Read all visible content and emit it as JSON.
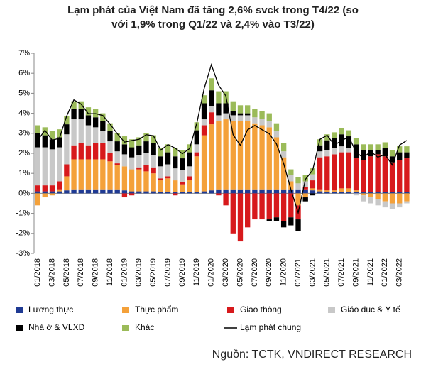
{
  "chart_data": {
    "type": "bar",
    "stacked": true,
    "title": [
      "Lạm phát của Việt Nam đã tăng 2,6% svck trong T4/22 (so",
      "với 1,9% trong Q1/22 và 2,4% vào T3/22)"
    ],
    "source": "Nguồn: TCTK, VNDIRECT RESEARCH",
    "categories": [
      "01/2018",
      null,
      "03/2018",
      null,
      "05/2018",
      null,
      "07/2018",
      null,
      "09/2018",
      null,
      "11/2018",
      null,
      "01/2019",
      null,
      "03/2019",
      null,
      "05/2019",
      null,
      "07/2019",
      null,
      "09/2019",
      null,
      "11/2019",
      null,
      "01/2020",
      null,
      "03/2020",
      null,
      "05/2020",
      null,
      "07/2020",
      null,
      "09/2020",
      null,
      "11/2020",
      null,
      "01/2021",
      null,
      "03/2021",
      null,
      "05/2021",
      null,
      "07/2021",
      null,
      "09/2021",
      null,
      "11/2021",
      null,
      "01/2022",
      null,
      "03/2022",
      null
    ],
    "ylim": [
      -3,
      7
    ],
    "yticks": [
      {
        "value": -3,
        "label": "-3%"
      },
      {
        "value": -2,
        "label": "-2%"
      },
      {
        "value": -1,
        "label": "-1%"
      },
      {
        "value": 0,
        "label": "0%"
      },
      {
        "value": 1,
        "label": "1%"
      },
      {
        "value": 2,
        "label": "2%"
      },
      {
        "value": 3,
        "label": "3%"
      },
      {
        "value": 4,
        "label": "4%"
      },
      {
        "value": 5,
        "label": "5%"
      },
      {
        "value": 6,
        "label": "6%"
      },
      {
        "value": 7,
        "label": "7%"
      }
    ],
    "grid": false,
    "series": [
      {
        "name": "Lương thực",
        "color": "#1f3a93",
        "values": [
          0.1,
          0.1,
          0.1,
          0.1,
          0.15,
          0.2,
          0.2,
          0.2,
          0.2,
          0.2,
          0.2,
          0.2,
          0.15,
          0.1,
          0.1,
          0.1,
          0.1,
          0.05,
          0.05,
          0.05,
          0.05,
          0.05,
          0.05,
          0.1,
          0.15,
          0.2,
          0.2,
          0.2,
          0.2,
          0.2,
          0.2,
          0.2,
          0.2,
          0.2,
          0.2,
          0.2,
          0.2,
          0.2,
          0.15,
          0.1,
          0.05,
          0.05,
          0.05,
          0.05,
          0.05,
          0.05,
          0.05,
          0.05,
          0.05,
          0.05,
          0.05,
          0.05
        ]
      },
      {
        "name": "Thực phẩm",
        "color": "#f4a13a",
        "values": [
          -0.6,
          -0.2,
          -0.1,
          0.1,
          0.7,
          1.5,
          1.5,
          1.5,
          1.5,
          1.5,
          1.4,
          1.2,
          1.2,
          1.1,
          1.1,
          1.0,
          0.9,
          0.6,
          0.7,
          0.6,
          0.4,
          0.6,
          1.8,
          2.8,
          3.3,
          3.4,
          3.5,
          3.4,
          3.4,
          3.4,
          3.3,
          3.2,
          3.1,
          2.6,
          1.6,
          0.4,
          -0.6,
          -0.2,
          0.1,
          0.1,
          0.1,
          0.1,
          0.2,
          0.2,
          0.1,
          -0.1,
          -0.2,
          -0.3,
          -0.4,
          -0.5,
          -0.5,
          -0.4
        ]
      },
      {
        "name": "Giao thông",
        "color": "#d7191c",
        "values": [
          0.3,
          0.3,
          0.3,
          0.4,
          0.6,
          0.7,
          0.8,
          0.7,
          0.8,
          0.8,
          0.4,
          0.1,
          -0.2,
          -0.1,
          0.1,
          0.3,
          0.3,
          0.1,
          0.1,
          -0.1,
          0.1,
          0.2,
          0.2,
          0.5,
          0.6,
          -0.1,
          -0.6,
          -2.0,
          -2.4,
          -1.7,
          -1.3,
          -1.3,
          -1.3,
          -1.2,
          -1.4,
          -1.2,
          -0.7,
          0.1,
          0.4,
          1.6,
          1.7,
          1.8,
          1.8,
          1.8,
          1.6,
          1.6,
          1.8,
          1.9,
          1.8,
          1.5,
          1.6,
          1.7
        ]
      },
      {
        "name": "Giáo dục & Y tế",
        "color": "#c8c8c8",
        "values": [
          1.9,
          1.9,
          1.8,
          1.7,
          1.5,
          1.3,
          1.2,
          1.0,
          0.8,
          0.6,
          0.6,
          0.6,
          0.6,
          0.6,
          0.6,
          0.6,
          0.6,
          0.6,
          0.6,
          0.6,
          0.6,
          0.5,
          0.4,
          0.3,
          0.3,
          0.3,
          0.3,
          0.3,
          0.3,
          0.3,
          0.3,
          0.3,
          0.3,
          0.3,
          0.3,
          0.3,
          0.3,
          0.3,
          0.3,
          0.3,
          0.3,
          0.3,
          0.3,
          0.2,
          -0.1,
          -0.3,
          -0.3,
          -0.3,
          -0.3,
          -0.3,
          -0.2,
          -0.1
        ]
      },
      {
        "name": "Nhà ở & VLXD",
        "color": "#000000",
        "values": [
          0.7,
          0.6,
          0.5,
          0.5,
          0.5,
          0.5,
          0.5,
          0.5,
          0.5,
          0.5,
          0.5,
          0.5,
          0.5,
          0.5,
          0.5,
          0.6,
          0.6,
          0.5,
          0.6,
          0.6,
          0.6,
          0.7,
          0.7,
          0.8,
          0.8,
          0.6,
          0.5,
          0.2,
          0.1,
          0.1,
          0,
          0,
          -0.1,
          -0.2,
          -0.3,
          -0.4,
          -0.6,
          -0.2,
          -0.1,
          0.3,
          0.5,
          0.5,
          0.6,
          0.6,
          0.7,
          0.5,
          0.3,
          0.2,
          0.4,
          0.3,
          0.4,
          0.3
        ]
      },
      {
        "name": "Khác",
        "color": "#9bbb59",
        "values": [
          0.4,
          0.4,
          0.4,
          0.4,
          0.4,
          0.4,
          0.4,
          0.4,
          0.4,
          0.4,
          0.4,
          0.4,
          0.4,
          0.4,
          0.4,
          0.4,
          0.4,
          0.4,
          0.4,
          0.4,
          0.4,
          0.4,
          0.4,
          0.4,
          0.6,
          0.6,
          0.6,
          0.5,
          0.4,
          0.4,
          0.4,
          0.4,
          0.4,
          0.4,
          0.4,
          0.3,
          0.3,
          0.3,
          0.3,
          0.3,
          0.3,
          0.3,
          0.3,
          0.3,
          0.3,
          0.3,
          0.3,
          0.3,
          0.3,
          0.3,
          0.3,
          0.3
        ]
      },
      {
        "name": "Lạm phát chung",
        "color": "#000000",
        "type": "line",
        "values": [
          2.65,
          3.15,
          2.66,
          2.75,
          3.86,
          4.67,
          4.46,
          3.98,
          3.98,
          3.89,
          3.46,
          2.98,
          2.56,
          2.64,
          2.7,
          2.93,
          2.88,
          2.16,
          2.44,
          2.26,
          1.98,
          2.24,
          3.52,
          5.23,
          6.43,
          5.4,
          4.87,
          2.93,
          2.4,
          3.17,
          3.39,
          3.18,
          2.98,
          2.47,
          1.48,
          0.19,
          -0.97,
          0.7,
          1.16,
          2.7,
          2.9,
          2.41,
          2.64,
          2.82,
          2.06,
          1.77,
          2.1,
          1.81,
          1.94,
          1.42,
          2.41,
          2.64
        ]
      }
    ]
  }
}
